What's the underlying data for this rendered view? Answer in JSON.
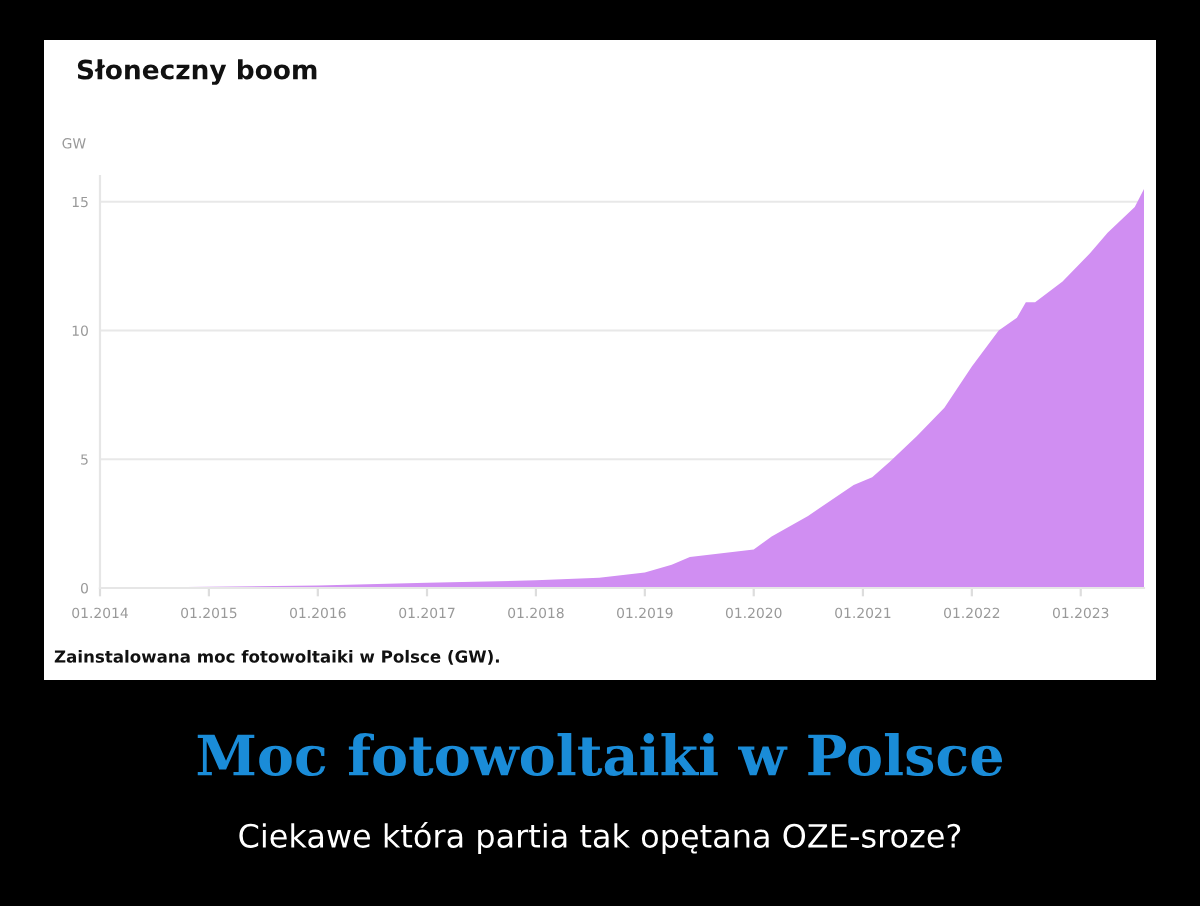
{
  "chart_data": {
    "type": "area",
    "title": "Słoneczny boom",
    "ylabel": "GW",
    "x": [
      "2014-01",
      "2015-01",
      "2016-01",
      "2017-01",
      "2018-01",
      "2018-08",
      "2019-01",
      "2019-04",
      "2019-06",
      "2020-01",
      "2020-03",
      "2020-07",
      "2020-12",
      "2021-02",
      "2021-04",
      "2021-07",
      "2021-10",
      "2022-01",
      "2022-04",
      "2022-06",
      "2022-07",
      "2022-08",
      "2022-11",
      "2023-02",
      "2023-04",
      "2023-07",
      "2023-08"
    ],
    "series": [
      {
        "color": "#d08ef2",
        "values": [
          0.0,
          0.05,
          0.1,
          0.2,
          0.3,
          0.4,
          0.6,
          0.9,
          1.2,
          1.5,
          2.0,
          2.8,
          4.0,
          4.3,
          4.9,
          5.9,
          7.0,
          8.6,
          10.0,
          10.5,
          11.1,
          11.1,
          11.9,
          13.0,
          13.8,
          14.8,
          15.5
        ]
      }
    ],
    "xlim": [
      "2014-01",
      "2023-08"
    ],
    "xticks": [
      {
        "value": "2014-01",
        "label": "01.2014"
      },
      {
        "value": "2015-01",
        "label": "01.2015"
      },
      {
        "value": "2016-01",
        "label": "01.2016"
      },
      {
        "value": "2017-01",
        "label": "01.2017"
      },
      {
        "value": "2018-01",
        "label": "01.2018"
      },
      {
        "value": "2019-01",
        "label": "01.2019"
      },
      {
        "value": "2020-01",
        "label": "01.2020"
      },
      {
        "value": "2021-01",
        "label": "01.2021"
      },
      {
        "value": "2022-01",
        "label": "01.2022"
      },
      {
        "value": "2023-01",
        "label": "01.2023"
      }
    ],
    "ylim": [
      0,
      16
    ],
    "yticks": [
      0,
      5,
      10,
      15
    ],
    "grid": "y",
    "legend": false,
    "annotations": [
      "Zainstalowana moc fotowoltaiki w Polsce (GW).",
      "Moc fotowoltaiki w Polsce",
      "Ciekawe która partia tak opętana OZE-sroze?"
    ]
  }
}
